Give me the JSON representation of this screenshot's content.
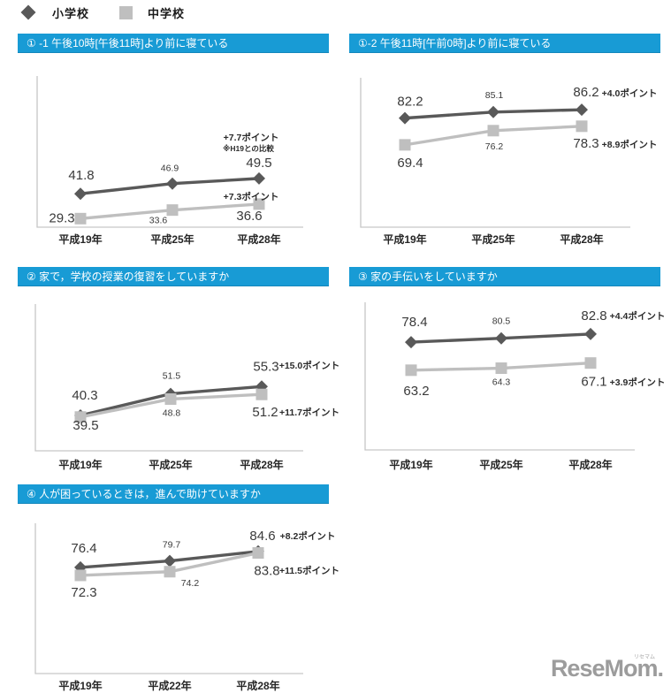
{
  "legend": {
    "items": [
      {
        "label": "小学校",
        "marker": "diamond",
        "color": "#595959"
      },
      {
        "label": "中学校",
        "marker": "square",
        "color": "#bfbfbf"
      }
    ]
  },
  "colors": {
    "header_bg": "#189bd5",
    "header_text": "#ffffff",
    "series_elementary": "#595959",
    "series_junior_high": "#bfbfbf",
    "axis": "#c6c6c6",
    "label_text": "#3a3a3a"
  },
  "logo": {
    "text": "ReseMom",
    "suffix": ".",
    "ruby": "リセマム"
  },
  "chart_data": [
    {
      "type": "line",
      "title": "① -1 午後10時[午後11時]より前に寝ている",
      "categories": [
        "平成19年",
        "平成25年",
        "平成28年"
      ],
      "series": [
        {
          "name": "小学校",
          "values": [
            41.8,
            46.9,
            49.5
          ]
        },
        {
          "name": "中学校",
          "values": [
            29.3,
            33.6,
            36.6
          ]
        }
      ],
      "annotations": [
        {
          "text": "+7.7ポイント"
        },
        {
          "text": "※H19との比較",
          "note": true
        },
        {
          "text": "+7.3ポイント"
        }
      ],
      "ylim": [
        25,
        101
      ],
      "grid": false,
      "legend_position": "top-left-shared"
    },
    {
      "type": "line",
      "title": "①-2 午後11時[午前0時]より前に寝ている",
      "categories": [
        "平成19年",
        "平成25年",
        "平成28年"
      ],
      "series": [
        {
          "name": "小学校",
          "values": [
            82.2,
            85.1,
            86.2
          ]
        },
        {
          "name": "中学校",
          "values": [
            69.4,
            76.2,
            78.3
          ]
        }
      ],
      "annotations": [
        {
          "text": "+4.0ポイント"
        },
        {
          "text": "+8.9ポイント"
        }
      ],
      "ylim": [
        30,
        101.5
      ],
      "grid": false,
      "legend_position": "top-left-shared"
    },
    {
      "type": "line",
      "title": "② 家で，学校の授業の復習をしていますか",
      "categories": [
        "平成19年",
        "平成25年",
        "平成28年"
      ],
      "series": [
        {
          "name": "小学校",
          "values": [
            40.3,
            51.5,
            55.3
          ]
        },
        {
          "name": "中学校",
          "values": [
            39.5,
            48.8,
            51.2
          ]
        }
      ],
      "annotations": [
        {
          "text": "+15.0ポイント"
        },
        {
          "text": "+11.7ポイント"
        }
      ],
      "ylim": [
        22,
        98
      ],
      "grid": false,
      "legend_position": "top-left-shared"
    },
    {
      "type": "line",
      "title": "③ 家の手伝いをしていますか",
      "categories": [
        "平成19年",
        "平成25年",
        "平成28年"
      ],
      "series": [
        {
          "name": "小学校",
          "values": [
            78.4,
            80.5,
            82.8
          ]
        },
        {
          "name": "中学校",
          "values": [
            63.2,
            64.3,
            67.1
          ]
        }
      ],
      "annotations": [
        {
          "text": "+4.4ポイント"
        },
        {
          "text": "+3.9ポイント"
        }
      ],
      "ylim": [
        20,
        100
      ],
      "grid": false,
      "legend_position": "top-left-shared"
    },
    {
      "type": "line",
      "title": "④ 人が困っているときは，進んで助けていますか",
      "categories": [
        "平成19年",
        "平成22年",
        "平成28年"
      ],
      "series": [
        {
          "name": "小学校",
          "values": [
            76.4,
            79.7,
            84.6
          ]
        },
        {
          "name": "中学校",
          "values": [
            72.3,
            74.2,
            83.8
          ]
        }
      ],
      "annotations": [
        {
          "text": "+8.2ポイント"
        },
        {
          "text": "+11.5ポイント"
        }
      ],
      "ylim": [
        22,
        99
      ],
      "grid": false,
      "legend_position": "top-left-shared"
    }
  ]
}
